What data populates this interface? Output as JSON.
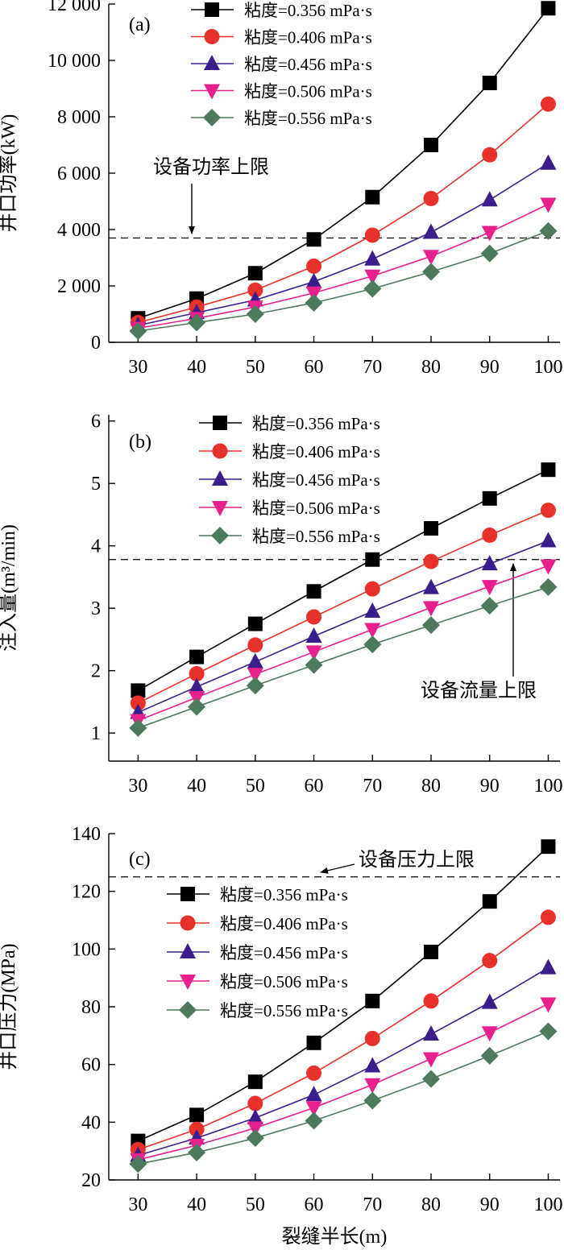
{
  "chart_data": [
    {
      "type": "line",
      "panel_label": "(a)",
      "ylabel": "井口功率(kW)",
      "xlabel": "",
      "x": [
        30,
        40,
        50,
        60,
        70,
        80,
        90,
        100
      ],
      "xlim": [
        25,
        102
      ],
      "ylim": [
        0,
        12000
      ],
      "yticks": [
        0,
        2000,
        4000,
        6000,
        8000,
        10000,
        12000
      ],
      "ytick_labels": [
        "0",
        "2 000",
        "4 000",
        "6 000",
        "8 000",
        "10 000",
        "12 000"
      ],
      "series": [
        {
          "name": "粘度=0.356 mPa·s",
          "color": "#000000",
          "marker": "square",
          "values": [
            850,
            1550,
            2450,
            3650,
            5150,
            7000,
            9200,
            11850
          ]
        },
        {
          "name": "粘度=0.406 mPa·s",
          "color": "#e8312a",
          "marker": "circle",
          "values": [
            700,
            1250,
            1850,
            2700,
            3800,
            5100,
            6650,
            8450
          ]
        },
        {
          "name": "粘度=0.456 mPa·s",
          "color": "#3b1e8c",
          "marker": "triangle-up",
          "values": [
            600,
            1050,
            1500,
            2150,
            2950,
            3900,
            5050,
            6350
          ]
        },
        {
          "name": "粘度=0.506 mPa·s",
          "color": "#e8208c",
          "marker": "triangle-down",
          "values": [
            500,
            850,
            1250,
            1750,
            2350,
            3050,
            3900,
            4900
          ]
        },
        {
          "name": "粘度=0.556 mPa·s",
          "color": "#4d7a5c",
          "marker": "diamond",
          "values": [
            400,
            700,
            1000,
            1400,
            1900,
            2500,
            3150,
            3950
          ]
        }
      ],
      "limit_line": {
        "value": 3700,
        "label": "设备功率上限"
      }
    },
    {
      "type": "line",
      "panel_label": "(b)",
      "ylabel": "注入量(m³/min)",
      "xlabel": "",
      "x": [
        30,
        40,
        50,
        60,
        70,
        80,
        90,
        100
      ],
      "xlim": [
        25,
        102
      ],
      "ylim": [
        0.55,
        6.1
      ],
      "yticks": [
        1,
        2,
        3,
        4,
        5,
        6
      ],
      "ytick_labels": [
        "1",
        "2",
        "3",
        "4",
        "5",
        "6"
      ],
      "series": [
        {
          "name": "粘度=0.356 mPa·s",
          "color": "#000000",
          "marker": "square",
          "values": [
            1.68,
            2.22,
            2.75,
            3.27,
            3.78,
            4.28,
            4.76,
            5.22
          ]
        },
        {
          "name": "粘度=0.406 mPa·s",
          "color": "#e8312a",
          "marker": "circle",
          "values": [
            1.48,
            1.95,
            2.41,
            2.86,
            3.31,
            3.75,
            4.17,
            4.57
          ]
        },
        {
          "name": "粘度=0.456 mPa·s",
          "color": "#3b1e8c",
          "marker": "triangle-up",
          "values": [
            1.33,
            1.74,
            2.14,
            2.55,
            2.95,
            3.33,
            3.71,
            4.08
          ]
        },
        {
          "name": "粘度=0.506 mPa·s",
          "color": "#e8208c",
          "marker": "triangle-down",
          "values": [
            1.2,
            1.57,
            1.94,
            2.3,
            2.66,
            3.01,
            3.35,
            3.68
          ]
        },
        {
          "name": "粘度=0.556 mPa·s",
          "color": "#4d7a5c",
          "marker": "diamond",
          "values": [
            1.08,
            1.42,
            1.76,
            2.09,
            2.42,
            2.73,
            3.04,
            3.34
          ]
        }
      ],
      "limit_line": {
        "value": 3.78,
        "label": "设备流量上限"
      }
    },
    {
      "type": "line",
      "panel_label": "(c)",
      "ylabel": "井口压力(MPa)",
      "xlabel": "裂缝半长(m)",
      "x": [
        30,
        40,
        50,
        60,
        70,
        80,
        90,
        100
      ],
      "xlim": [
        25,
        102
      ],
      "ylim": [
        20,
        140
      ],
      "yticks": [
        20,
        40,
        60,
        80,
        100,
        120,
        140
      ],
      "ytick_labels": [
        "20",
        "40",
        "60",
        "80",
        "100",
        "120",
        "140"
      ],
      "series": [
        {
          "name": "粘度=0.356 mPa·s",
          "color": "#000000",
          "marker": "square",
          "values": [
            33.5,
            42.5,
            54,
            67.5,
            82,
            99,
            116.5,
            135.5
          ]
        },
        {
          "name": "粘度=0.406 mPa·s",
          "color": "#e8312a",
          "marker": "circle",
          "values": [
            30.5,
            37.5,
            46.5,
            57,
            69,
            82,
            96,
            111
          ]
        },
        {
          "name": "粘度=0.456 mPa·s",
          "color": "#3b1e8c",
          "marker": "triangle-up",
          "values": [
            28.5,
            34.5,
            41.5,
            49.5,
            59.5,
            70.5,
            81.5,
            93.5
          ]
        },
        {
          "name": "粘度=0.506 mPa·s",
          "color": "#e8208c",
          "marker": "triangle-down",
          "values": [
            27,
            32,
            38,
            45,
            53,
            62,
            71,
            81
          ]
        },
        {
          "name": "粘度=0.556 mPa·s",
          "color": "#4d7a5c",
          "marker": "diamond",
          "values": [
            25.5,
            29.5,
            34.5,
            40.5,
            47.5,
            55,
            63,
            71.5
          ]
        }
      ],
      "limit_line": {
        "value": 125,
        "label": "设备压力上限"
      }
    }
  ]
}
